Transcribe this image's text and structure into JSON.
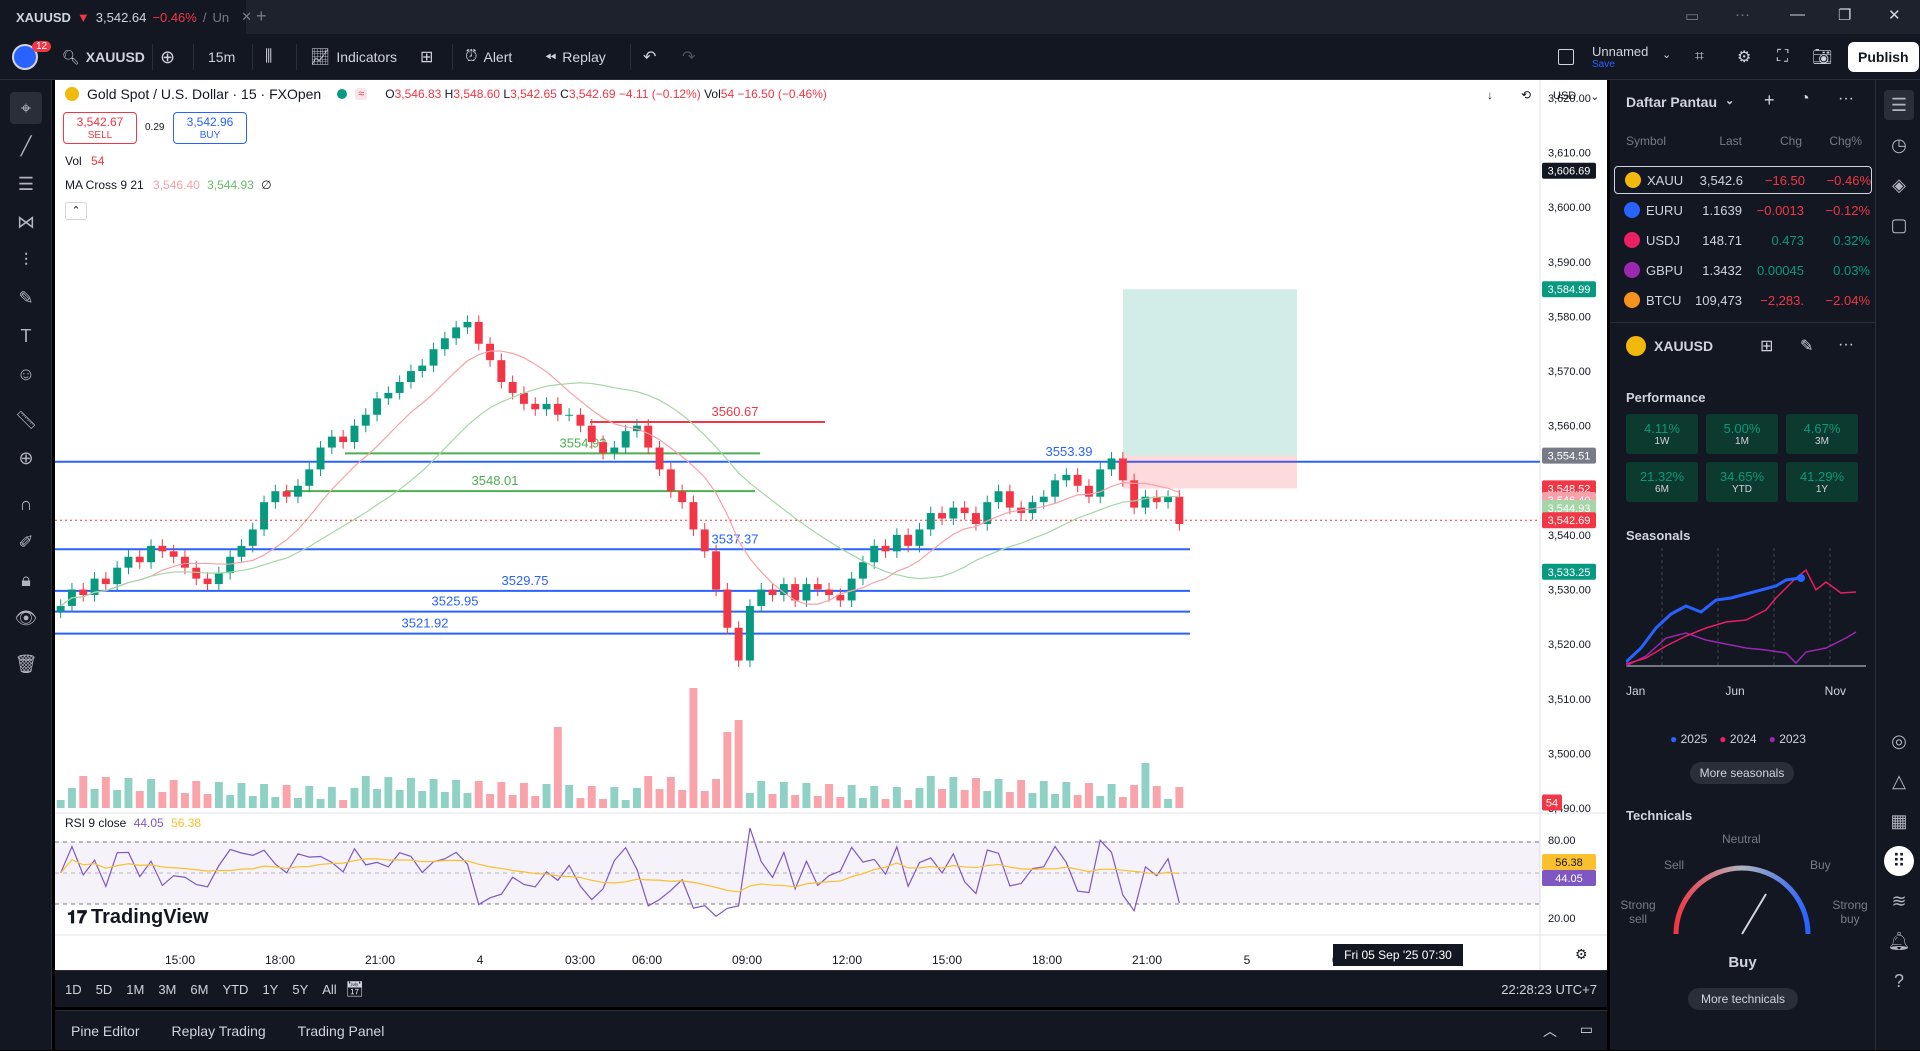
{
  "tab": {
    "symbol": "XAUUSD",
    "price": "3,542.64",
    "change": "−0.46%",
    "rest": "Un"
  },
  "toolbar": {
    "notif_count": "12",
    "symbol": "XAUUSD",
    "interval": "15m",
    "indicators": "Indicators",
    "alert": "Alert",
    "replay": "Replay",
    "layout_name": "Unnamed",
    "layout_status": "Save",
    "publish": "Publish"
  },
  "legend": {
    "title": "Gold Spot / U.S. Dollar · 15 · FXOpen",
    "o": "3,546.83",
    "h": "3,548.60",
    "l": "3,542.65",
    "c": "3,542.69",
    "chg": "−4.11 (−0.12%)",
    "vol_label": "Vol",
    "vol": "54",
    "vol_chg": "−16.50 (−0.46%)",
    "sell_price": "3,542.67",
    "sell_label": "SELL",
    "spread": "0.29",
    "buy_price": "3,542.96",
    "buy_label": "BUY",
    "vol_row": "Vol",
    "vol_row_val": "54",
    "ma_label": "MA Cross 9 21",
    "ma1": "3,546.40",
    "ma2": "3,544.93",
    "ma3": "∅",
    "rsi_label": "RSI 9 close",
    "rsi1": "44.05",
    "rsi2": "56.38",
    "currency": "USD",
    "watermark": "TradingView"
  },
  "chart_data": {
    "type": "candlestick",
    "symbol": "XAUUSD",
    "interval": "15",
    "ylim": [
      3490,
      3620
    ],
    "yticks": [
      "3,620.00",
      "3,610.00",
      "3,600.00",
      "3,590.00",
      "3,580.00",
      "3,570.00",
      "3,560.00",
      "3,540.00",
      "3,530.00",
      "3,520.00",
      "3,510.00",
      "3,500.00",
      "3,490.00"
    ],
    "xticks": [
      "15:00",
      "18:00",
      "21:00",
      "4",
      "03:00",
      "06:00",
      "09:00",
      "12:00",
      "15:00",
      "18:00",
      "21:00",
      "5",
      "03:00"
    ],
    "horizontal_levels": [
      {
        "label": "3560.67",
        "value": 3560.67,
        "color": "#f23645"
      },
      {
        "label": "3554.92",
        "value": 3554.92,
        "color": "#4caf50"
      },
      {
        "label": "3553.39",
        "value": 3553.39,
        "color": "#2962ff"
      },
      {
        "label": "3548.01",
        "value": 3548.01,
        "color": "#4caf50"
      },
      {
        "label": "3537.37",
        "value": 3537.37,
        "color": "#2962ff"
      },
      {
        "label": "3529.75",
        "value": 3529.75,
        "color": "#2962ff"
      },
      {
        "label": "3525.95",
        "value": 3525.95,
        "color": "#2962ff"
      },
      {
        "label": "3521.92",
        "value": 3521.92,
        "color": "#2962ff"
      }
    ],
    "price_tags": [
      {
        "label": "3,606.69",
        "color": "#131722"
      },
      {
        "label": "3,584.99",
        "color": "#089981"
      },
      {
        "label": "3,554.51",
        "color": "#787b86"
      },
      {
        "label": "3,548.52",
        "color": "#f23645"
      },
      {
        "label": "3,546.40",
        "color": "#f7a1aa"
      },
      {
        "label": "3,544.93",
        "color": "#a5d6a7"
      },
      {
        "label": "3,542.69",
        "color": "#f23645"
      },
      {
        "label": "3,533.25",
        "color": "#089981"
      },
      {
        "label": "54",
        "color": "#f23645"
      }
    ],
    "rsi": {
      "levels": [
        "80.00",
        "20.00"
      ],
      "tags": [
        "56.38",
        "44.05"
      ]
    },
    "crosshair_time": "Fri 05 Sep '25   07:30"
  },
  "ranges": [
    "1D",
    "5D",
    "1M",
    "3M",
    "6M",
    "YTD",
    "1Y",
    "5Y",
    "All"
  ],
  "clock": "22:28:23 UTC+7",
  "bottom_tabs": [
    "Pine Editor",
    "Replay Trading",
    "Trading Panel"
  ],
  "watchlist": {
    "title": "Daftar Pantau",
    "headers": [
      "Symbol",
      "Last",
      "Chg",
      "Chg%"
    ],
    "rows": [
      {
        "sym": "XAUU",
        "last": "3,542.6",
        "chg": "−16.50",
        "pct": "−0.46%",
        "dir": "down",
        "icon": "#f0b90b"
      },
      {
        "sym": "EURU",
        "last": "1.1639",
        "chg": "−0.0013",
        "pct": "−0.12%",
        "dir": "down",
        "icon": "#2962ff"
      },
      {
        "sym": "USDJ",
        "last": "148.71",
        "chg": "0.473",
        "pct": "0.32%",
        "dir": "up",
        "icon": "#e91e63"
      },
      {
        "sym": "GBPU",
        "last": "1.3432",
        "chg": "0.00045",
        "pct": "0.03%",
        "dir": "up",
        "icon": "#9c27b0"
      },
      {
        "sym": "BTCU",
        "last": "109,473",
        "chg": "−2,283.",
        "pct": "−2.04%",
        "dir": "down",
        "icon": "#f7931a"
      }
    ]
  },
  "details": {
    "symbol": "XAUUSD",
    "performance_title": "Performance",
    "performance": [
      {
        "value": "4.11%",
        "period": "1W",
        "dir": "up"
      },
      {
        "value": "5.00%",
        "period": "1M",
        "dir": "up"
      },
      {
        "value": "4.67%",
        "period": "3M",
        "dir": "up"
      },
      {
        "value": "21.32%",
        "period": "6M",
        "dir": "up"
      },
      {
        "value": "34.65%",
        "period": "YTD",
        "dir": "up"
      },
      {
        "value": "41.29%",
        "period": "1Y",
        "dir": "up"
      }
    ],
    "seasonals_title": "Seasonals",
    "seasonal_months": [
      "Jan",
      "Jun",
      "Nov"
    ],
    "seasonal_years": [
      "2025",
      "2024",
      "2023"
    ],
    "more_seasonals": "More seasonals",
    "technicals_title": "Technicals",
    "gauge_labels": {
      "neutral": "Neutral",
      "sell": "Sell",
      "buy": "Buy",
      "strong_sell": "Strong\nsell",
      "strong_buy": "Strong\nbuy"
    },
    "gauge_result": "Buy",
    "more_technicals": "More technicals"
  },
  "colors": {
    "up": "#089981",
    "down": "#f23645",
    "accent": "#2962ff"
  }
}
